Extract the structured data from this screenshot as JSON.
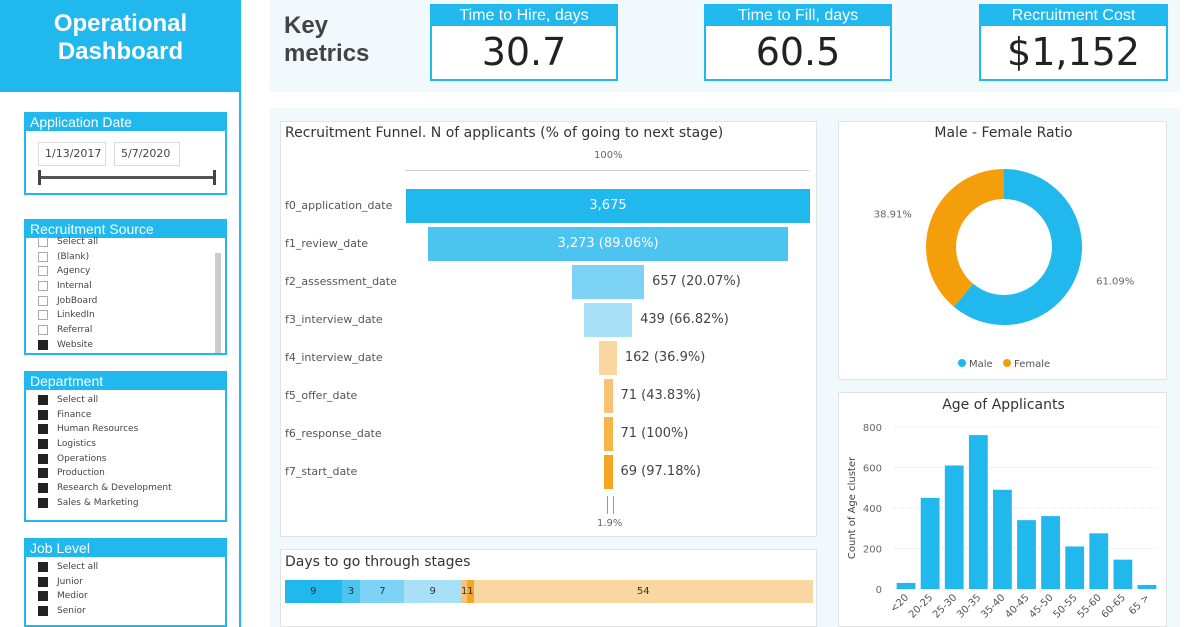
{
  "app": {
    "title_line1": "Operational",
    "title_line2": "Dashboard"
  },
  "filters": {
    "application_date": {
      "title": "Application Date",
      "start": "1/13/2017",
      "end": "5/7/2020"
    },
    "recruitment_source": {
      "title": "Recruitment Source",
      "items": [
        {
          "label": "Select all",
          "checked": false
        },
        {
          "label": "(Blank)",
          "checked": false
        },
        {
          "label": "Agency",
          "checked": false
        },
        {
          "label": "Internal",
          "checked": false
        },
        {
          "label": "JobBoard",
          "checked": false
        },
        {
          "label": "LinkedIn",
          "checked": false
        },
        {
          "label": "Referral",
          "checked": false
        },
        {
          "label": "Website",
          "checked": true
        }
      ]
    },
    "department": {
      "title": "Department",
      "items": [
        {
          "label": "Select all",
          "checked": true
        },
        {
          "label": "Finance",
          "checked": true
        },
        {
          "label": "Human Resources",
          "checked": true
        },
        {
          "label": "Logistics",
          "checked": true
        },
        {
          "label": "Operations",
          "checked": true
        },
        {
          "label": "Production",
          "checked": true
        },
        {
          "label": "Research & Development",
          "checked": true
        },
        {
          "label": "Sales & Marketing",
          "checked": true
        }
      ]
    },
    "job_level": {
      "title": "Job Level",
      "items": [
        {
          "label": "Select all",
          "checked": true
        },
        {
          "label": "Junior",
          "checked": true
        },
        {
          "label": "Medior",
          "checked": true
        },
        {
          "label": "Senior",
          "checked": true
        }
      ]
    }
  },
  "metrics": {
    "section_title_line1": "Key",
    "section_title_line2": "metrics",
    "time_to_hire": {
      "label": "Time to Hire, days",
      "value": "30.7"
    },
    "time_to_fill": {
      "label": "Time to Fill, days",
      "value": "60.5"
    },
    "recruitment_cost": {
      "label": "Recruitment Cost",
      "value": "$1,152"
    }
  },
  "colors": {
    "accent": "#21b8ee",
    "funnel": [
      "#21b8ee",
      "#4cc4f0",
      "#7dd3f5",
      "#a8e0f7",
      "#fad7a0",
      "#f9c274",
      "#f7b449",
      "#f5a623"
    ],
    "stages": [
      "#21b8ee",
      "#4cc4f0",
      "#7dd3f5",
      "#a8e0f7",
      "#f9c274",
      "#f5a623",
      "#fad7a0"
    ],
    "male": "#21b8ee",
    "female": "#f59e0b",
    "age_bar": "#21b8ee"
  },
  "chart_data": [
    {
      "id": "funnel",
      "type": "bar",
      "title": "Recruitment Funnel. N of applicants (% of going to next stage)",
      "top_label": "100%",
      "bottom_label": "1.9%",
      "categories": [
        "f0_application_date",
        "f1_review_date",
        "f2_assessment_date",
        "f3_interview_date",
        "f4_interview_date",
        "f5_offer_date",
        "f6_response_date",
        "f7_start_date"
      ],
      "values": [
        3675,
        3273,
        657,
        439,
        162,
        71,
        71,
        69
      ],
      "labels": [
        "3,675",
        "3,273 (89.06%)",
        "657 (20.07%)",
        "439 (66.82%)",
        "162 (36.9%)",
        "71 (43.83%)",
        "71 (100%)",
        "69 (97.18%)"
      ]
    },
    {
      "id": "stages",
      "type": "bar",
      "title": "Days to go through stages",
      "values": [
        9,
        3,
        7,
        9,
        1,
        1,
        54
      ],
      "labels": [
        "9",
        "3",
        "7",
        "9",
        "1",
        "1",
        "54"
      ]
    },
    {
      "id": "gender",
      "type": "pie",
      "title": "Male - Female Ratio",
      "categories": [
        "Male",
        "Female"
      ],
      "values": [
        61.09,
        38.91
      ],
      "labels": [
        "61.09%",
        "38.91%"
      ],
      "legend": "bottom"
    },
    {
      "id": "age",
      "type": "bar",
      "title": "Age of Applicants",
      "ylabel": "Count of Age cluster",
      "xlabel": "",
      "categories": [
        "<20",
        "20-25",
        "25-30",
        "30-35",
        "35-40",
        "40-45",
        "45-50",
        "50-55",
        "55-60",
        "60-65",
        "65 >"
      ],
      "values": [
        30,
        450,
        610,
        760,
        490,
        340,
        360,
        210,
        275,
        145,
        20
      ],
      "ylim": [
        0,
        800
      ],
      "yticks": [
        "0",
        "200",
        "400",
        "600",
        "800"
      ]
    }
  ]
}
